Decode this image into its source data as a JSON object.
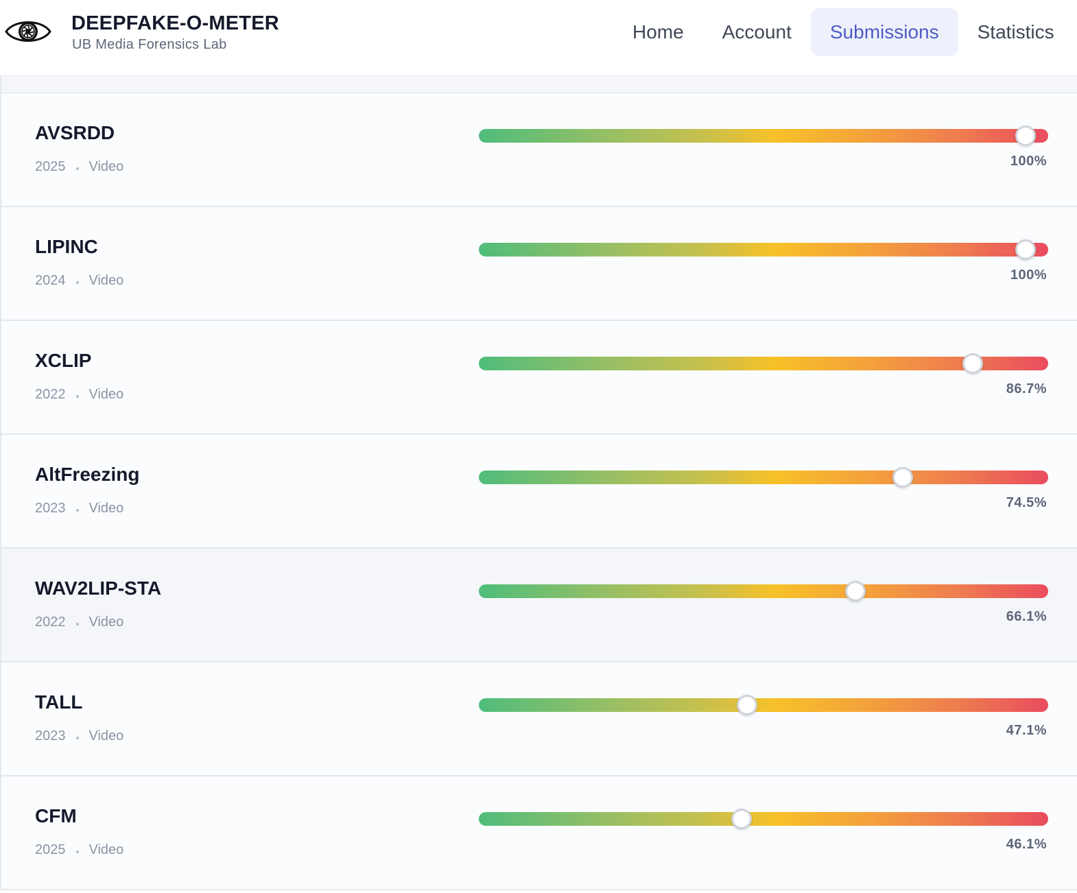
{
  "header": {
    "title": "DEEPFAKE-O-METER",
    "subtitle": "UB Media Forensics Lab",
    "logo_icon": "eye-icon"
  },
  "nav": {
    "items": [
      {
        "label": "Home",
        "active": false
      },
      {
        "label": "Account",
        "active": false
      },
      {
        "label": "Submissions",
        "active": true
      },
      {
        "label": "Statistics",
        "active": false
      }
    ]
  },
  "colors": {
    "accent": "#4f5cc5",
    "gradient_start": "#4fbd7b",
    "gradient_mid": "#f7c128",
    "gradient_end": "#ea4c5e"
  },
  "results": [
    {
      "name": "AVSRDD",
      "year": "2025",
      "type": "Video",
      "score_label": "100%",
      "score_fraction": 0.96
    },
    {
      "name": "LIPINC",
      "year": "2024",
      "type": "Video",
      "score_label": "100%",
      "score_fraction": 0.96
    },
    {
      "name": "XCLIP",
      "year": "2022",
      "type": "Video",
      "score_label": "86.7%",
      "score_fraction": 0.867
    },
    {
      "name": "AltFreezing",
      "year": "2023",
      "type": "Video",
      "score_label": "74.5%",
      "score_fraction": 0.745
    },
    {
      "name": "WAV2LIP-STA",
      "year": "2022",
      "type": "Video",
      "score_label": "66.1%",
      "score_fraction": 0.661
    },
    {
      "name": "TALL",
      "year": "2023",
      "type": "Video",
      "score_label": "47.1%",
      "score_fraction": 0.471
    },
    {
      "name": "CFM",
      "year": "2025",
      "type": "Video",
      "score_label": "46.1%",
      "score_fraction": 0.461
    }
  ]
}
